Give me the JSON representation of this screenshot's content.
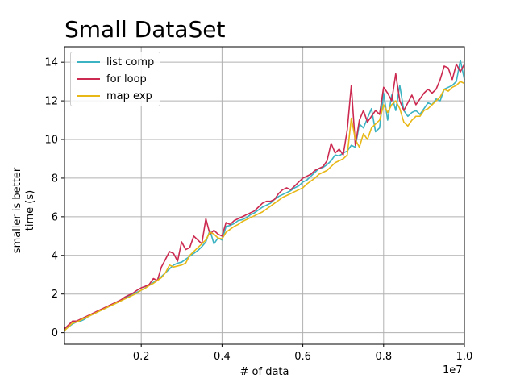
{
  "chart_data": {
    "type": "line",
    "title": "Small DataSet",
    "xlabel": "# of data",
    "ylabel_lines": [
      "smaller is better",
      "time (s)"
    ],
    "x_offset_label": "1e7",
    "xlim": [
      0.01,
      1.0
    ],
    "ylim": [
      -0.6,
      14.8
    ],
    "xticks": [
      0.2,
      0.4,
      0.6,
      0.8,
      1.0
    ],
    "xtick_labels": [
      "0.2",
      "0.4",
      "0.6",
      "0.8",
      "1.0"
    ],
    "yticks": [
      0,
      2,
      4,
      6,
      8,
      10,
      12,
      14
    ],
    "ytick_labels": [
      "0",
      "2",
      "4",
      "6",
      "8",
      "10",
      "12",
      "14"
    ],
    "grid": true,
    "legend_position": "upper-left",
    "x": [
      0.01,
      0.02,
      0.03,
      0.04,
      0.05,
      0.06,
      0.07,
      0.08,
      0.09,
      0.1,
      0.11,
      0.12,
      0.13,
      0.14,
      0.15,
      0.16,
      0.17,
      0.18,
      0.19,
      0.2,
      0.21,
      0.22,
      0.23,
      0.24,
      0.25,
      0.26,
      0.27,
      0.28,
      0.29,
      0.3,
      0.31,
      0.32,
      0.33,
      0.34,
      0.35,
      0.36,
      0.37,
      0.38,
      0.39,
      0.4,
      0.41,
      0.42,
      0.43,
      0.44,
      0.45,
      0.46,
      0.47,
      0.48,
      0.49,
      0.5,
      0.51,
      0.52,
      0.53,
      0.54,
      0.55,
      0.56,
      0.57,
      0.58,
      0.59,
      0.6,
      0.61,
      0.62,
      0.63,
      0.64,
      0.65,
      0.66,
      0.67,
      0.68,
      0.69,
      0.7,
      0.71,
      0.72,
      0.73,
      0.74,
      0.75,
      0.76,
      0.77,
      0.78,
      0.79,
      0.8,
      0.81,
      0.82,
      0.83,
      0.84,
      0.85,
      0.86,
      0.87,
      0.88,
      0.89,
      0.9,
      0.91,
      0.92,
      0.93,
      0.94,
      0.95,
      0.96,
      0.97,
      0.98,
      0.99,
      1.0
    ],
    "series": [
      {
        "name": "list comp",
        "color": "#3bb3c3",
        "values": [
          0.15,
          0.3,
          0.45,
          0.55,
          0.6,
          0.7,
          0.85,
          0.95,
          1.05,
          1.15,
          1.25,
          1.35,
          1.45,
          1.55,
          1.65,
          1.78,
          1.9,
          2.0,
          2.1,
          2.2,
          2.32,
          2.45,
          2.6,
          2.72,
          2.9,
          3.1,
          3.3,
          3.5,
          3.6,
          3.65,
          3.8,
          3.95,
          4.1,
          4.25,
          4.45,
          4.7,
          5.3,
          4.6,
          4.9,
          4.8,
          5.5,
          5.55,
          5.65,
          5.8,
          5.85,
          5.95,
          6.1,
          6.2,
          6.35,
          6.5,
          6.6,
          6.7,
          6.9,
          7.05,
          7.15,
          7.25,
          7.35,
          7.5,
          7.6,
          7.8,
          7.9,
          8.1,
          8.3,
          8.5,
          8.55,
          8.7,
          8.9,
          9.2,
          9.15,
          9.3,
          9.4,
          9.7,
          9.6,
          10.8,
          10.6,
          11.1,
          11.6,
          10.4,
          10.6,
          12.4,
          11.0,
          12.3,
          11.5,
          12.8,
          11.5,
          11.2,
          11.4,
          11.5,
          11.3,
          11.6,
          11.9,
          11.8,
          12.1,
          12.0,
          12.6,
          12.7,
          12.8,
          13.0,
          14.1,
          13.1
        ],
        "label_visible": true
      },
      {
        "name": "for loop",
        "color": "#cc2a50",
        "values": [
          0.2,
          0.4,
          0.6,
          0.6,
          0.7,
          0.8,
          0.9,
          1.0,
          1.1,
          1.2,
          1.3,
          1.4,
          1.5,
          1.6,
          1.7,
          1.85,
          1.95,
          2.05,
          2.2,
          2.32,
          2.4,
          2.5,
          2.8,
          2.7,
          3.4,
          3.8,
          4.2,
          4.1,
          3.7,
          4.7,
          4.3,
          4.4,
          5.0,
          4.8,
          4.6,
          5.9,
          5.1,
          5.3,
          5.1,
          5.0,
          5.7,
          5.6,
          5.8,
          5.9,
          6.0,
          6.1,
          6.2,
          6.3,
          6.5,
          6.7,
          6.8,
          6.8,
          6.9,
          7.2,
          7.4,
          7.5,
          7.4,
          7.6,
          7.8,
          8.0,
          8.1,
          8.2,
          8.4,
          8.5,
          8.6,
          8.9,
          9.8,
          9.3,
          9.5,
          9.2,
          10.5,
          12.8,
          9.7,
          11.0,
          11.5,
          10.9,
          11.2,
          11.5,
          11.3,
          12.7,
          12.4,
          12.0,
          13.4,
          12.0,
          11.5,
          11.9,
          12.3,
          11.8,
          12.1,
          12.4,
          12.6,
          12.4,
          12.6,
          13.1,
          13.8,
          13.7,
          13.1,
          13.9,
          13.5,
          13.9
        ],
        "label_visible": true
      },
      {
        "name": "map exp",
        "color": "#e8b817",
        "values": [
          0.1,
          0.3,
          0.5,
          0.55,
          0.65,
          0.75,
          0.85,
          0.95,
          1.05,
          1.15,
          1.25,
          1.35,
          1.45,
          1.55,
          1.65,
          1.75,
          1.85,
          1.95,
          2.05,
          2.2,
          2.3,
          2.45,
          2.55,
          2.7,
          2.85,
          3.1,
          3.5,
          3.4,
          3.45,
          3.5,
          3.6,
          4.0,
          4.2,
          4.4,
          4.6,
          4.8,
          5.2,
          5.1,
          4.9,
          4.85,
          5.2,
          5.35,
          5.5,
          5.6,
          5.75,
          5.85,
          5.95,
          6.05,
          6.15,
          6.25,
          6.4,
          6.55,
          6.7,
          6.85,
          7.0,
          7.1,
          7.2,
          7.3,
          7.4,
          7.5,
          7.7,
          7.85,
          8.0,
          8.2,
          8.3,
          8.4,
          8.6,
          8.8,
          8.9,
          9.0,
          9.2,
          11.1,
          10.0,
          9.6,
          10.3,
          10.0,
          10.6,
          10.8,
          11.0,
          11.8,
          11.4,
          11.8,
          12.0,
          11.6,
          10.9,
          10.7,
          11.0,
          11.2,
          11.2,
          11.5,
          11.6,
          11.8,
          12.0,
          12.2,
          12.6,
          12.5,
          12.7,
          12.8,
          13.0,
          12.9
        ],
        "label_visible": true
      }
    ]
  }
}
